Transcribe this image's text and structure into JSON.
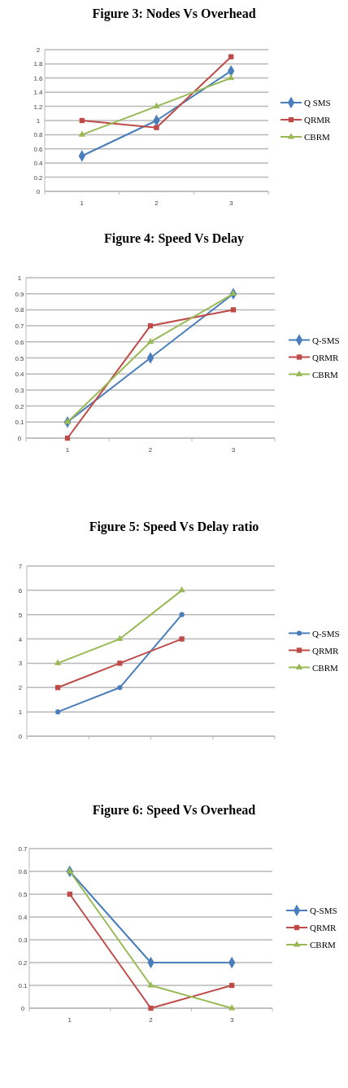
{
  "chart_data": [
    {
      "type": "line",
      "title": "Figure 3: Nodes Vs Overhead",
      "categories": [
        "1",
        "2",
        "3"
      ],
      "ylim": [
        0,
        2
      ],
      "yticks": [
        0,
        0.2,
        0.4,
        0.6,
        0.8,
        1,
        1.2,
        1.4,
        1.6,
        1.8,
        2
      ],
      "grid": "y",
      "legend": "right",
      "series": [
        {
          "name": "Q SMS",
          "color": "#4a7ebb",
          "marker": "diamond",
          "values": [
            0.5,
            1,
            1.7
          ]
        },
        {
          "name": "QRMR",
          "color": "#be4b48",
          "marker": "square",
          "values": [
            1,
            0.9,
            1.9
          ]
        },
        {
          "name": "CBRM",
          "color": "#98b954",
          "marker": "triangle",
          "values": [
            0.8,
            1.2,
            1.6
          ]
        }
      ]
    },
    {
      "type": "line",
      "title": "Figure 4: Speed Vs Delay",
      "categories": [
        "1",
        "2",
        "3"
      ],
      "ylim": [
        0,
        1
      ],
      "yticks": [
        0,
        0.1,
        0.2,
        0.3,
        0.4,
        0.5,
        0.6,
        0.7,
        0.8,
        0.9,
        1
      ],
      "grid": "y",
      "legend": "right",
      "series": [
        {
          "name": "Q-SMS",
          "color": "#4a7ebb",
          "marker": "diamond",
          "values": [
            0.1,
            0.5,
            0.9
          ]
        },
        {
          "name": "QRMR",
          "color": "#be4b48",
          "marker": "square",
          "values": [
            0,
            0.7,
            0.8
          ]
        },
        {
          "name": "CBRM",
          "color": "#98b954",
          "marker": "triangle",
          "values": [
            0.1,
            0.6,
            0.9
          ]
        }
      ]
    },
    {
      "type": "line",
      "title": "Figure 5: Speed Vs Delay ratio",
      "categories": [
        null,
        null,
        null,
        null
      ],
      "ylim": [
        0,
        7
      ],
      "yticks": [
        0,
        1,
        2,
        3,
        4,
        5,
        6,
        7
      ],
      "grid": "y",
      "legend": "right",
      "series": [
        {
          "name": "Q-SMS",
          "color": "#4a7ebb",
          "marker": "circle",
          "values": [
            1,
            2,
            5,
            null
          ]
        },
        {
          "name": "QRMR",
          "color": "#be4b48",
          "marker": "square",
          "values": [
            2,
            3,
            4,
            null
          ]
        },
        {
          "name": "CBRM",
          "color": "#98b954",
          "marker": "triangle",
          "values": [
            3,
            4,
            6,
            null
          ]
        }
      ]
    },
    {
      "type": "line",
      "title": "Figure 6: Speed Vs Overhead",
      "categories": [
        "1",
        "2",
        "3"
      ],
      "ylim": [
        0,
        0.7
      ],
      "yticks": [
        0,
        0.1,
        0.2,
        0.3,
        0.4,
        0.5,
        0.6,
        0.7
      ],
      "grid": "y",
      "legend": "right",
      "series": [
        {
          "name": "Q-SMS",
          "color": "#4a7ebb",
          "marker": "diamond",
          "values": [
            0.6,
            0.2,
            0.2
          ]
        },
        {
          "name": "QRMR",
          "color": "#be4b48",
          "marker": "square",
          "values": [
            0.5,
            0,
            0.1
          ]
        },
        {
          "name": "CBRM",
          "color": "#98b954",
          "marker": "triangle",
          "values": [
            0.6,
            0.1,
            0
          ]
        }
      ]
    }
  ]
}
